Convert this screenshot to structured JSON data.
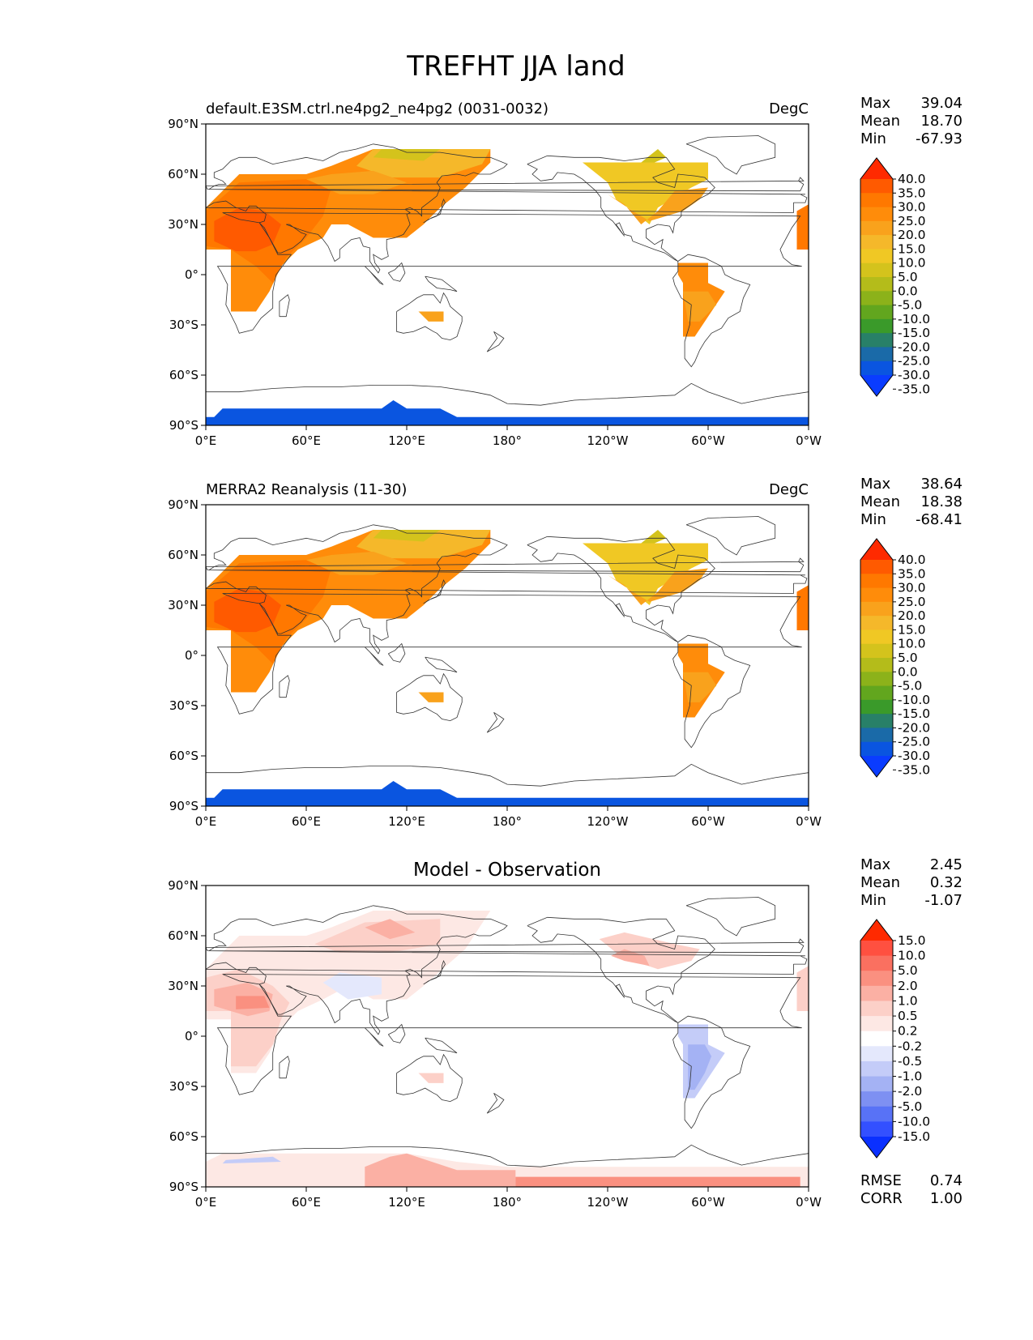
{
  "title": "TREFHT JJA land",
  "lat_labels": [
    "90°N",
    "60°N",
    "30°N",
    "0°",
    "30°S",
    "60°S",
    "90°S"
  ],
  "lon_labels": [
    "0°E",
    "60°E",
    "120°E",
    "180°",
    "120°W",
    "60°W",
    "0°W"
  ],
  "panels": [
    {
      "name": "model",
      "left_title": "default.E3SM.ctrl.ne4pg2_ne4pg2 (0031-0032)",
      "center_title": "",
      "units": "DegC",
      "stats": [
        {
          "label": "Max",
          "value": "39.04"
        },
        {
          "label": "Mean",
          "value": "18.70"
        },
        {
          "label": "Min",
          "value": "-67.93"
        }
      ],
      "colorbar": {
        "ticks": [
          "40.0",
          "35.0",
          "30.0",
          "25.0",
          "20.0",
          "15.0",
          "10.0",
          "5.0",
          "0.0",
          "-5.0",
          "-10.0",
          "-15.0",
          "-20.0",
          "-25.0",
          "-30.0",
          "-35.0"
        ],
        "colors": [
          "#ff2a00",
          "#ff5a00",
          "#ff7800",
          "#ff8c0a",
          "#f9a21c",
          "#f5b82a",
          "#f0c824",
          "#d4c31c",
          "#b4bc1a",
          "#8cb21a",
          "#62a61e",
          "#3a9a2a",
          "#288068",
          "#1a6aa8",
          "#0a55e0",
          "#0a3cff"
        ]
      },
      "extra_stats": [],
      "kind": "abs"
    },
    {
      "name": "obs",
      "left_title": "MERRA2 Reanalysis (11-30)",
      "center_title": "",
      "units": "DegC",
      "stats": [
        {
          "label": "Max",
          "value": "38.64"
        },
        {
          "label": "Mean",
          "value": "18.38"
        },
        {
          "label": "Min",
          "value": "-68.41"
        }
      ],
      "colorbar": {
        "ticks": [
          "40.0",
          "35.0",
          "30.0",
          "25.0",
          "20.0",
          "15.0",
          "10.0",
          "5.0",
          "0.0",
          "-5.0",
          "-10.0",
          "-15.0",
          "-20.0",
          "-25.0",
          "-30.0",
          "-35.0"
        ],
        "colors": [
          "#ff2a00",
          "#ff5a00",
          "#ff7800",
          "#ff8c0a",
          "#f9a21c",
          "#f5b82a",
          "#f0c824",
          "#d4c31c",
          "#b4bc1a",
          "#8cb21a",
          "#62a61e",
          "#3a9a2a",
          "#288068",
          "#1a6aa8",
          "#0a55e0",
          "#0a3cff"
        ]
      },
      "extra_stats": [],
      "kind": "abs"
    },
    {
      "name": "diff",
      "left_title": "",
      "center_title": "Model - Observation",
      "units": "",
      "stats": [
        {
          "label": "Max",
          "value": "2.45"
        },
        {
          "label": "Mean",
          "value": "0.32"
        },
        {
          "label": "Min",
          "value": "-1.07"
        }
      ],
      "colorbar": {
        "ticks": [
          "15.0",
          "10.0",
          "5.0",
          "2.0",
          "1.0",
          "0.5",
          "0.2",
          "-0.2",
          "-0.5",
          "-1.0",
          "-2.0",
          "-5.0",
          "-10.0",
          "-15.0"
        ],
        "colors": [
          "#ff2a00",
          "#ff5040",
          "#fa7060",
          "#fa9080",
          "#fbb0a4",
          "#fcd0c8",
          "#fde8e4",
          "#ffffff",
          "#e4e8fc",
          "#c4ccf8",
          "#a4b2f4",
          "#7e90f2",
          "#5872f6",
          "#3350ff",
          "#0a30ff"
        ]
      },
      "extra_stats": [
        {
          "label": "RMSE",
          "value": "0.74"
        },
        {
          "label": "CORR",
          "value": "1.00"
        }
      ],
      "kind": "diff"
    }
  ]
}
